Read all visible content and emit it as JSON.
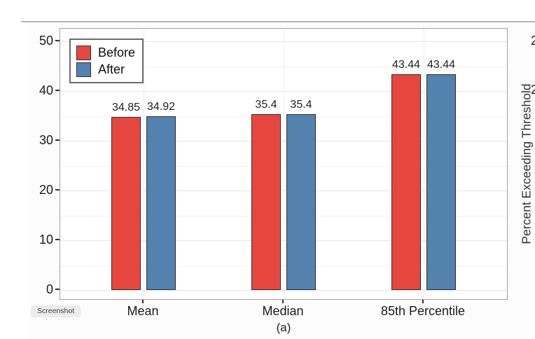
{
  "figure": {
    "caption": "(a)",
    "screenshot_chip": "Screenshot"
  },
  "chart_data": {
    "type": "bar",
    "title": "",
    "categories": [
      "Mean",
      "Median",
      "85th Percentile"
    ],
    "series": [
      {
        "name": "Before",
        "color": "#E7463F",
        "values": [
          34.85,
          35.4,
          43.44
        ],
        "value_labels": [
          "34.85",
          "35.4",
          "43.44"
        ]
      },
      {
        "name": "After",
        "color": "#5282AD",
        "values": [
          34.92,
          35.4,
          43.44
        ],
        "value_labels": [
          "34.92",
          "35.4",
          "43.44"
        ]
      }
    ],
    "ylim": [
      0,
      50
    ],
    "yticks": [
      0,
      10,
      20,
      30,
      40,
      50
    ],
    "minor_yticks": [
      5,
      15,
      25,
      35,
      45
    ],
    "grid": true,
    "legend_position": "top-left",
    "xlabel": "",
    "ylabel": ""
  },
  "side_panel": {
    "ylabel": "Percent Exceeding Threshold",
    "tick_fragments": [
      "2",
      "2"
    ]
  }
}
